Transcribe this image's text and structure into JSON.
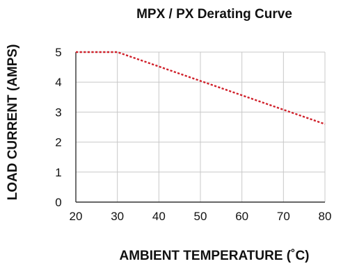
{
  "chart_data": {
    "type": "line",
    "title": "MPX / PX Derating Curve",
    "xlabel": "AMBIENT TEMPERATURE (˚C)",
    "ylabel": "LOAD CURRENT (AMPS)",
    "xlim": [
      20,
      80
    ],
    "ylim": [
      0,
      5
    ],
    "x_ticks": [
      20,
      30,
      40,
      50,
      60,
      70,
      80
    ],
    "y_ticks": [
      0,
      1,
      2,
      3,
      4,
      5
    ],
    "grid": true,
    "series": [
      {
        "x": [
          20,
          30,
          80
        ],
        "y": [
          5,
          5,
          2.6
        ],
        "color": "#d0202a",
        "line_style": "dotted"
      }
    ]
  }
}
